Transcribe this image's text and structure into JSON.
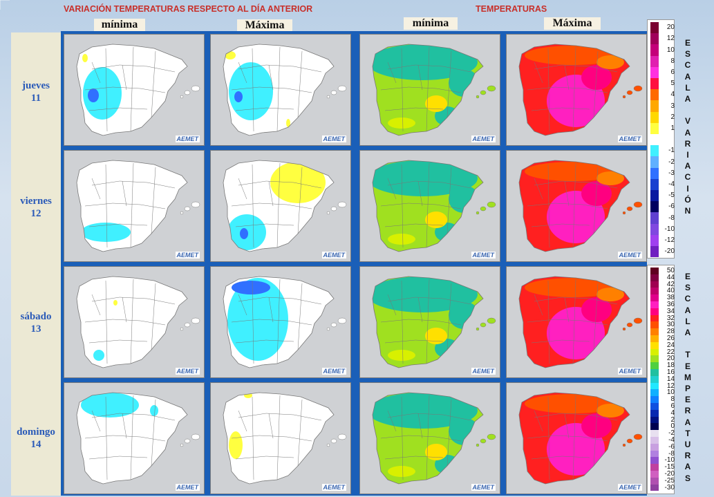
{
  "header": {
    "variation_title": "VARIACIÓN TEMPERATURAS RESPECTO AL DÍA ANTERIOR",
    "temperature_title": "TEMPERATURAS"
  },
  "columns": [
    "mínima",
    "Máxima",
    "mínima",
    "Máxima"
  ],
  "days": [
    {
      "name": "jueves",
      "num": "11"
    },
    {
      "name": "viernes",
      "num": "12"
    },
    {
      "name": "sábado",
      "num": "13"
    },
    {
      "name": "domingo",
      "num": "14"
    }
  ],
  "logo_text": "AEMET",
  "variation_scale": {
    "title_letters": [
      "E",
      "S",
      "C",
      "A",
      "L",
      "A",
      " ",
      "V",
      "A",
      "R",
      "I",
      "A",
      "C",
      "I",
      "Ó",
      "N"
    ],
    "entries": [
      {
        "label": "20",
        "color": "#7a0030"
      },
      {
        "label": "12",
        "color": "#a0005a"
      },
      {
        "label": "10",
        "color": "#c4007a"
      },
      {
        "label": "8",
        "color": "#e020b0"
      },
      {
        "label": "6",
        "color": "#ff30e0"
      },
      {
        "label": "5",
        "color": "#ff1040"
      },
      {
        "label": "4",
        "color": "#ff6a00"
      },
      {
        "label": "3",
        "color": "#ffa800"
      },
      {
        "label": "2",
        "color": "#ffd800"
      },
      {
        "label": "1",
        "color": "#ffff40"
      },
      {
        "label": "",
        "color": "#ffffff"
      },
      {
        "label": "-1",
        "color": "#40f0ff"
      },
      {
        "label": "-2",
        "color": "#60b0ff"
      },
      {
        "label": "-3",
        "color": "#3070ff"
      },
      {
        "label": "-4",
        "color": "#1840d0"
      },
      {
        "label": "-5",
        "color": "#0818a0"
      },
      {
        "label": "-6",
        "color": "#000060"
      },
      {
        "label": "-8",
        "color": "#6040d0"
      },
      {
        "label": "-10",
        "color": "#8048e0"
      },
      {
        "label": "-12",
        "color": "#a040f0"
      },
      {
        "label": "-20",
        "color": "#7020c0"
      }
    ]
  },
  "temperature_scale": {
    "title_letters": [
      "E",
      "S",
      "C",
      "A",
      "L",
      "A",
      " ",
      "T",
      "E",
      "M",
      "P",
      "E",
      "R",
      "A",
      "T",
      "U",
      "R",
      "A",
      "S"
    ],
    "entries": [
      {
        "label": "50",
        "color": "#600020"
      },
      {
        "label": "44",
        "color": "#800040"
      },
      {
        "label": "42",
        "color": "#a00050"
      },
      {
        "label": "40",
        "color": "#c0006a"
      },
      {
        "label": "38",
        "color": "#e0008a"
      },
      {
        "label": "36",
        "color": "#ff20c0"
      },
      {
        "label": "34",
        "color": "#ff0080"
      },
      {
        "label": "32",
        "color": "#ff2020"
      },
      {
        "label": "30",
        "color": "#ff5000"
      },
      {
        "label": "28",
        "color": "#ff8000"
      },
      {
        "label": "26",
        "color": "#ffb000"
      },
      {
        "label": "24",
        "color": "#ffe000"
      },
      {
        "label": "22",
        "color": "#d8f000"
      },
      {
        "label": "20",
        "color": "#a0e020"
      },
      {
        "label": "18",
        "color": "#50d040"
      },
      {
        "label": "16",
        "color": "#20c0a0"
      },
      {
        "label": "14",
        "color": "#20d0d0"
      },
      {
        "label": "12",
        "color": "#20e8ff"
      },
      {
        "label": "10",
        "color": "#10b0ff"
      },
      {
        "label": "8",
        "color": "#1080ff"
      },
      {
        "label": "6",
        "color": "#1050e0"
      },
      {
        "label": "4",
        "color": "#0828b0"
      },
      {
        "label": "2",
        "color": "#001080"
      },
      {
        "label": "0",
        "color": "#000050"
      },
      {
        "label": "-2",
        "color": "#e8e0f0"
      },
      {
        "label": "-4",
        "color": "#d8c0e8"
      },
      {
        "label": "-6",
        "color": "#c8a0e0"
      },
      {
        "label": "-8",
        "color": "#b080e0"
      },
      {
        "label": "-10",
        "color": "#9050d0"
      },
      {
        "label": "-15",
        "color": "#c040a0"
      },
      {
        "label": "-20",
        "color": "#d060c0"
      },
      {
        "label": "-25",
        "color": "#b050b0"
      },
      {
        "label": "-30",
        "color": "#9040a0"
      }
    ]
  },
  "map_colors": {
    "sea": "#cfd1d4",
    "land_variation": "#ffffff",
    "province_lines": "#777777",
    "variation_cool": "#40f0ff",
    "variation_cooler": "#3070ff",
    "variation_warm": "#ffff40",
    "min_temp_north": "#20c0a0",
    "min_temp_south": "#a0e020",
    "max_temp_base": "#ff5000",
    "max_temp_hot": "#ff20c0",
    "max_temp_edge": "#ff2020"
  }
}
